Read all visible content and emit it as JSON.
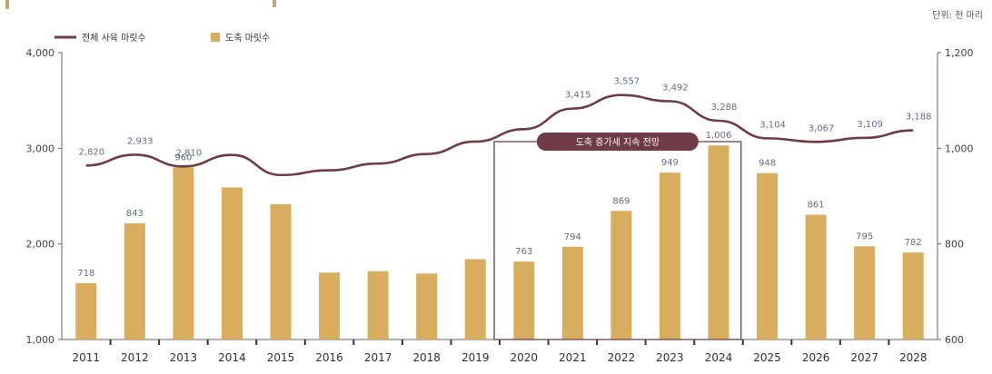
{
  "chart_data": {
    "type": "bar+line",
    "title": "",
    "unit_label": "단위: 천 마리",
    "categories": [
      "2011",
      "2012",
      "2013",
      "2014",
      "2015",
      "2016",
      "2017",
      "2018",
      "2019",
      "2020",
      "2021",
      "2022",
      "2023",
      "2024",
      "2025",
      "2026",
      "2027",
      "2028"
    ],
    "series": [
      {
        "name": "전체 사육 마릿수",
        "type": "line",
        "axis": "left",
        "values": [
          2820,
          2933,
          2810,
          2930,
          2720,
          2770,
          2840,
          2940,
          3070,
          3200,
          3415,
          3557,
          3492,
          3288,
          3104,
          3067,
          3109,
          3188
        ],
        "labels": [
          "2,820",
          "2,933",
          "2,810",
          "",
          "",
          "",
          "",
          "",
          "",
          "",
          "3,415",
          "3,557",
          "3,492",
          "3,288",
          "3,104",
          "3,067",
          "3,109",
          "3,188"
        ],
        "color": "#6e3b47"
      },
      {
        "name": "도축 마릿수",
        "type": "bar",
        "axis": "right",
        "values": [
          718,
          843,
          960,
          918,
          883,
          740,
          743,
          738,
          768,
          763,
          794,
          869,
          949,
          1006,
          948,
          861,
          795,
          782
        ],
        "labels": [
          "718",
          "843",
          "960",
          "",
          "",
          "",
          "",
          "",
          "",
          "763",
          "794",
          "869",
          "949",
          "1,006",
          "948",
          "861",
          "795",
          "782"
        ],
        "color": "#d9ad5e"
      }
    ],
    "y_left": {
      "min": 1000,
      "max": 4000,
      "ticks": [
        "1,000",
        "2,000",
        "3,000",
        "4,000"
      ]
    },
    "y_right": {
      "min": 600,
      "max": 1200,
      "ticks": [
        "600",
        "800",
        "1,000",
        "1,200"
      ]
    },
    "grid": false,
    "legend": "top-left",
    "annotation": {
      "text": "도축 증가세 지속 전망",
      "from": "2020",
      "to": "2024"
    }
  }
}
